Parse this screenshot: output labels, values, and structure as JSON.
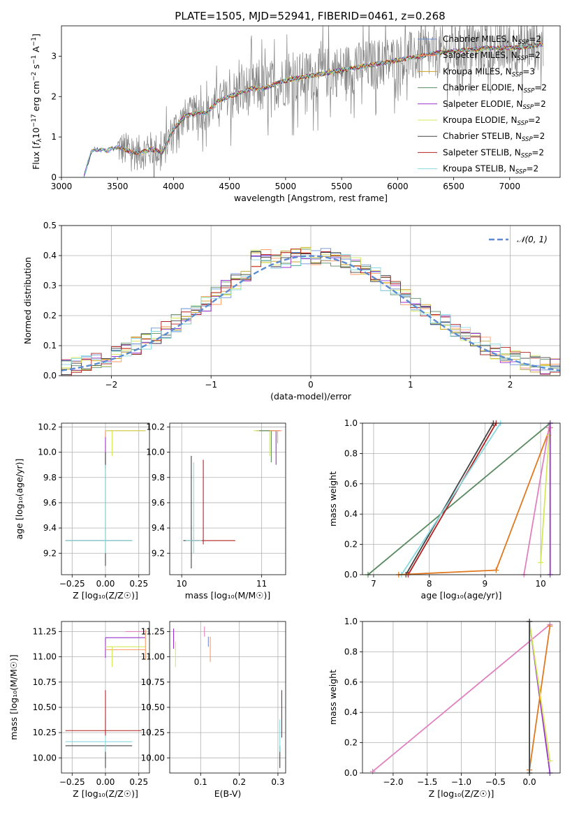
{
  "figure_title": "PLATE=1505, MJD=52941, FIBERID=0461, z=0.268",
  "colors": {
    "Chabrier MILES": "#6a8fd8",
    "Salpeter MILES": "#ff9966",
    "Kroupa MILES": "#c8a020",
    "Chabrier ELODIE": "#5a8a60",
    "Salpeter ELODIE": "#9932cc",
    "Kroupa ELODIE": "#d4e85a",
    "Chabrier STELIB": "#444444",
    "Salpeter STELIB": "#b22222",
    "Kroupa STELIB": "#88d8e0",
    "gauss": "#5b8bd0",
    "flux_data": "#808080",
    "orange_w": "#e07820",
    "pink_w": "#e080c0"
  },
  "chart_data": [
    {
      "id": "spectrum",
      "type": "line",
      "title": "PLATE=1505, MJD=52941, FIBERID=0461, z=0.268",
      "xlabel": "wavelength [Angstrom, rest frame]",
      "ylabel_parts": [
        "Flux [",
        "f",
        "λ",
        "10",
        "−17",
        " erg cm",
        "−2",
        " s",
        "−1",
        " A",
        "−1",
        "]"
      ],
      "xlim": [
        3000,
        7450
      ],
      "ylim": [
        0,
        3.75
      ],
      "xticks": [
        "3000",
        "3500",
        "4000",
        "4500",
        "5000",
        "5500",
        "6000",
        "6500",
        "7000"
      ],
      "yticks": [
        "0",
        "1",
        "2",
        "3"
      ],
      "legend": [
        {
          "name": "Chabrier MILES",
          "n": "2"
        },
        {
          "name": "Salpeter MILES",
          "n": "2"
        },
        {
          "name": "Kroupa MILES",
          "n": "3"
        },
        {
          "name": "Chabrier ELODIE",
          "n": "2"
        },
        {
          "name": "Salpeter ELODIE",
          "n": "2"
        },
        {
          "name": "Kroupa ELODIE",
          "n": "2"
        },
        {
          "name": "Chabrier STELIB",
          "n": "2"
        },
        {
          "name": "Salpeter STELIB",
          "n": "2"
        },
        {
          "name": "Kroupa STELIB",
          "n": "2"
        }
      ],
      "legend_prefix": "N",
      "legend_sub": "SSP",
      "continuum": {
        "x": [
          3200,
          3260,
          3300,
          3400,
          3500,
          3600,
          3700,
          3800,
          3900,
          4000,
          4100,
          4200,
          4300,
          4400,
          4500,
          4600,
          4700,
          4800,
          4900,
          5000,
          5200,
          5400,
          5600,
          5800,
          6000,
          6200,
          6400,
          6600,
          6800,
          7000,
          7200,
          7300
        ],
        "y": [
          0.0,
          0.6,
          0.7,
          0.65,
          0.75,
          0.65,
          0.6,
          0.7,
          0.6,
          1.2,
          1.5,
          1.6,
          1.6,
          1.9,
          2.0,
          2.1,
          2.2,
          2.2,
          2.3,
          2.4,
          2.5,
          2.6,
          2.7,
          2.8,
          2.9,
          3.0,
          3.1,
          3.15,
          3.2,
          3.2,
          3.25,
          3.3
        ]
      }
    },
    {
      "id": "residuals",
      "type": "histogram",
      "xlabel": "(data-model)/error",
      "ylabel": "Normed distribution",
      "xlim": [
        -2.5,
        2.5
      ],
      "ylim": [
        0,
        0.5
      ],
      "xticks": [
        "−2",
        "−1",
        "0",
        "1",
        "2"
      ],
      "yticks": [
        "0.0",
        "0.1",
        "0.2",
        "0.3",
        "0.4",
        "0.5"
      ],
      "legend": "𝒩(0, 1)",
      "gauss": {
        "mean": 0,
        "sigma": 1
      }
    },
    {
      "id": "z-age",
      "type": "scatter",
      "xlabel": "Z [log₁₀(Z/Z☉)]",
      "ylabel": "age  [log₁₀(age/yr)]",
      "xlim": [
        -0.33,
        0.33
      ],
      "ylim": [
        9.03,
        10.23
      ],
      "xticks": [
        "−0.25",
        "0.00",
        "0.25"
      ],
      "yticks": [
        "9.2",
        "9.4",
        "9.6",
        "9.8",
        "10.0",
        "10.2"
      ],
      "points": [
        {
          "series": "Salpeter ELODIE",
          "x": 0.0,
          "y": 10.17,
          "xerr": [
            0.0,
            0.3
          ],
          "yerr": [
            0.3,
            0.0
          ]
        },
        {
          "series": "Salpeter MILES",
          "x": 0.0,
          "y": 10.17,
          "xerr": [
            0.0,
            0.3
          ],
          "yerr": [
            0.05,
            0.0
          ]
        },
        {
          "series": "Kroupa ELODIE",
          "x": 0.05,
          "y": 10.17,
          "xerr": [
            0.05,
            0.25
          ],
          "yerr": [
            0.2,
            0.0
          ]
        },
        {
          "series": "Chabrier STELIB",
          "x": 0.0,
          "y": 9.3,
          "xerr": [
            0.3,
            0.2
          ],
          "yerr": [
            0.2,
            0.7
          ]
        },
        {
          "series": "Kroupa STELIB",
          "x": 0.0,
          "y": 9.3,
          "xerr": [
            0.3,
            0.2
          ],
          "yerr": [
            0.1,
            0.6
          ]
        }
      ]
    },
    {
      "id": "mass-age",
      "type": "scatter",
      "xlabel": "mass [log₁₀(M/M☉)]",
      "ylabel": "",
      "xlim": [
        9.85,
        11.3
      ],
      "ylim": [
        9.03,
        10.23
      ],
      "xticks": [
        "10",
        "11"
      ],
      "yticks": [
        "9.2",
        "9.4",
        "9.6",
        "9.8",
        "10.0",
        "10.2"
      ],
      "points": [
        {
          "series": "Chabrier STELIB",
          "x": 10.12,
          "y": 9.3,
          "xerr": [
            0.1,
            0.1
          ],
          "yerr": [
            0.22,
            0.67
          ]
        },
        {
          "series": "Salpeter STELIB",
          "x": 10.27,
          "y": 9.3,
          "xerr": [
            0.15,
            0.4
          ],
          "yerr": [
            0.03,
            0.64
          ]
        },
        {
          "series": "Kroupa STELIB",
          "x": 10.15,
          "y": 9.3,
          "xerr": [
            0.1,
            0.1
          ],
          "yerr": [
            0.1,
            0.62
          ]
        },
        {
          "series": "Salpeter ELODIE",
          "x": 11.18,
          "y": 10.17,
          "xerr": [
            0.25,
            0.05
          ],
          "yerr": [
            0.27,
            0.0
          ]
        },
        {
          "series": "Kroupa ELODIE",
          "x": 11.1,
          "y": 10.17,
          "xerr": [
            0.2,
            0.1
          ],
          "yerr": [
            0.2,
            0.0
          ]
        },
        {
          "series": "Chabrier ELODIE",
          "x": 11.12,
          "y": 10.17,
          "xerr": [
            0.15,
            0.05
          ],
          "yerr": [
            0.25,
            0.0
          ]
        },
        {
          "series": "Salpeter MILES",
          "x": 11.2,
          "y": 10.17,
          "xerr": [
            0.1,
            0.05
          ],
          "yerr": [
            0.1,
            0.0
          ]
        }
      ]
    },
    {
      "id": "age-weight",
      "type": "line",
      "xlabel": "age  [log₁₀(age/yr)]",
      "ylabel": "mass weight",
      "xlim": [
        6.8,
        10.35
      ],
      "ylim": [
        0,
        1
      ],
      "xticks": [
        "7",
        "8",
        "9",
        "10"
      ],
      "yticks": [
        "0.0",
        "0.2",
        "0.4",
        "0.6",
        "0.8",
        "1.0"
      ],
      "series": [
        {
          "name": "Chabrier ELODIE",
          "x": [
            6.9,
            10.17
          ],
          "y": [
            0.0,
            1.0
          ]
        },
        {
          "name": "Chabrier STELIB",
          "x": [
            7.58,
            9.15
          ],
          "y": [
            0.0,
            1.0
          ]
        },
        {
          "name": "Salpeter STELIB",
          "x": [
            7.62,
            9.2
          ],
          "y": [
            0.0,
            1.0
          ]
        },
        {
          "name": "Kroupa STELIB",
          "x": [
            7.5,
            9.28
          ],
          "y": [
            0.0,
            1.0
          ]
        },
        {
          "name": "orange_w",
          "x": [
            7.45,
            9.2,
            10.17
          ],
          "y": [
            0.0,
            0.03,
            0.97
          ]
        },
        {
          "name": "pink_w",
          "x": [
            9.7,
            10.15
          ],
          "y": [
            0.0,
            0.97
          ]
        },
        {
          "name": "Kroupa ELODIE",
          "x": [
            10.0,
            10.15
          ],
          "y": [
            0.08,
            0.92
          ]
        },
        {
          "name": "Salpeter ELODIE",
          "x": [
            10.17,
            10.17
          ],
          "y": [
            0.0,
            1.0
          ]
        }
      ]
    },
    {
      "id": "z-mass",
      "type": "scatter",
      "xlabel": "Z [log₁₀(Z/Z☉)]",
      "ylabel": "mass [log₁₀(M/M☉)]",
      "xlim": [
        -0.33,
        0.33
      ],
      "ylim": [
        9.85,
        11.35
      ],
      "xticks": [
        "−0.25",
        "0.00",
        "0.25"
      ],
      "yticks": [
        "10.00",
        "10.25",
        "10.50",
        "10.75",
        "11.00",
        "11.25"
      ],
      "points": [
        {
          "series": "Chabrier STELIB",
          "x": 0.0,
          "y": 10.12,
          "xerr": [
            0.3,
            0.2
          ],
          "yerr": [
            0.22,
            0.0
          ]
        },
        {
          "series": "Kroupa STELIB",
          "x": 0.0,
          "y": 10.16,
          "xerr": [
            0.3,
            0.2
          ],
          "yerr": [
            0.1,
            0.22
          ]
        },
        {
          "series": "Salpeter STELIB",
          "x": 0.0,
          "y": 10.27,
          "xerr": [
            0.3,
            0.27
          ],
          "yerr": [
            0.05,
            0.4
          ]
        },
        {
          "series": "Salpeter ELODIE",
          "x": 0.0,
          "y": 11.19,
          "xerr": [
            0.0,
            0.3
          ],
          "yerr": [
            0.2,
            0.0
          ]
        },
        {
          "series": "Salpeter MILES",
          "x": 0.3,
          "y": 11.07,
          "xerr": [
            0.3,
            0.0
          ],
          "yerr": [
            0.1,
            0.2
          ]
        },
        {
          "series": "Kroupa ELODIE",
          "x": 0.05,
          "y": 11.1,
          "xerr": [
            0.05,
            0.25
          ],
          "yerr": [
            0.2,
            0.0
          ]
        },
        {
          "series": "pink_w",
          "x": 0.3,
          "y": 11.25,
          "xerr": [
            0.15,
            0.0
          ],
          "yerr": [
            0.0,
            0.0
          ]
        }
      ]
    },
    {
      "id": "ebv-mass",
      "type": "scatter",
      "xlabel": "E(B-V)",
      "ylabel": "",
      "xlim": [
        0.02,
        0.32
      ],
      "ylim": [
        9.85,
        11.35
      ],
      "xticks": [
        "0.1",
        "0.2",
        "0.3"
      ],
      "yticks": [
        "10.00",
        "10.25",
        "10.50",
        "10.75",
        "11.00",
        "11.25"
      ],
      "points": [
        {
          "series": "Chabrier STELIB",
          "x": 0.305,
          "y": 10.12,
          "xerr": [
            0,
            0
          ],
          "yerr": [
            0.22,
            0.0
          ]
        },
        {
          "series": "Kroupa STELIB",
          "x": 0.305,
          "y": 10.16,
          "xerr": [
            0,
            0
          ],
          "yerr": [
            0.1,
            0.22
          ]
        },
        {
          "series": "Salpeter STELIB",
          "x": 0.31,
          "y": 10.3,
          "xerr": [
            0,
            0
          ],
          "yerr": [
            0.1,
            0.37
          ]
        },
        {
          "series": "Salpeter ELODIE",
          "x": 0.03,
          "y": 11.18,
          "xerr": [
            0,
            0
          ],
          "yerr": [
            0.1,
            0.1
          ]
        },
        {
          "series": "Kroupa ELODIE",
          "x": 0.035,
          "y": 11.0,
          "xerr": [
            0,
            0
          ],
          "yerr": [
            0.1,
            0.15
          ]
        },
        {
          "series": "Salpeter MILES",
          "x": 0.125,
          "y": 11.1,
          "xerr": [
            0,
            0
          ],
          "yerr": [
            0.15,
            0.1
          ]
        },
        {
          "series": "pink_w",
          "x": 0.11,
          "y": 11.25,
          "xerr": [
            0,
            0
          ],
          "yerr": [
            0.05,
            0.05
          ]
        },
        {
          "series": "Chabrier MILES",
          "x": 0.12,
          "y": 11.15,
          "xerr": [
            0,
            0
          ],
          "yerr": [
            0.05,
            0.05
          ]
        }
      ]
    },
    {
      "id": "z-weight",
      "type": "line",
      "xlabel": "Z [log₁₀(Z/Z☉)]",
      "ylabel": "mass weight",
      "xlim": [
        -2.45,
        0.45
      ],
      "ylim": [
        0,
        1
      ],
      "xticks": [
        "−2.0",
        "−1.5",
        "−1.0",
        "−0.5",
        "0.0"
      ],
      "yticks": [
        "0.0",
        "0.2",
        "0.4",
        "0.6",
        "0.8",
        "1.0"
      ],
      "series": [
        {
          "name": "pink_w",
          "x": [
            -2.3,
            0.3
          ],
          "y": [
            0.01,
            0.98
          ]
        },
        {
          "name": "Salpeter ELODIE",
          "x": [
            0.0,
            0.3
          ],
          "y": [
            1.0,
            0.0
          ]
        },
        {
          "name": "orange_w",
          "x": [
            0.0,
            0.3
          ],
          "y": [
            0.02,
            0.97
          ]
        },
        {
          "name": "Kroupa ELODIE",
          "x": [
            0.0,
            0.3
          ],
          "y": [
            1.0,
            0.08
          ]
        },
        {
          "name": "Kroupa STELIB",
          "x": [
            0.0,
            0.0
          ],
          "y": [
            0.0,
            1.0
          ]
        },
        {
          "name": "Chabrier STELIB",
          "x": [
            0.0,
            0.0
          ],
          "y": [
            0.0,
            1.0
          ]
        }
      ]
    }
  ]
}
